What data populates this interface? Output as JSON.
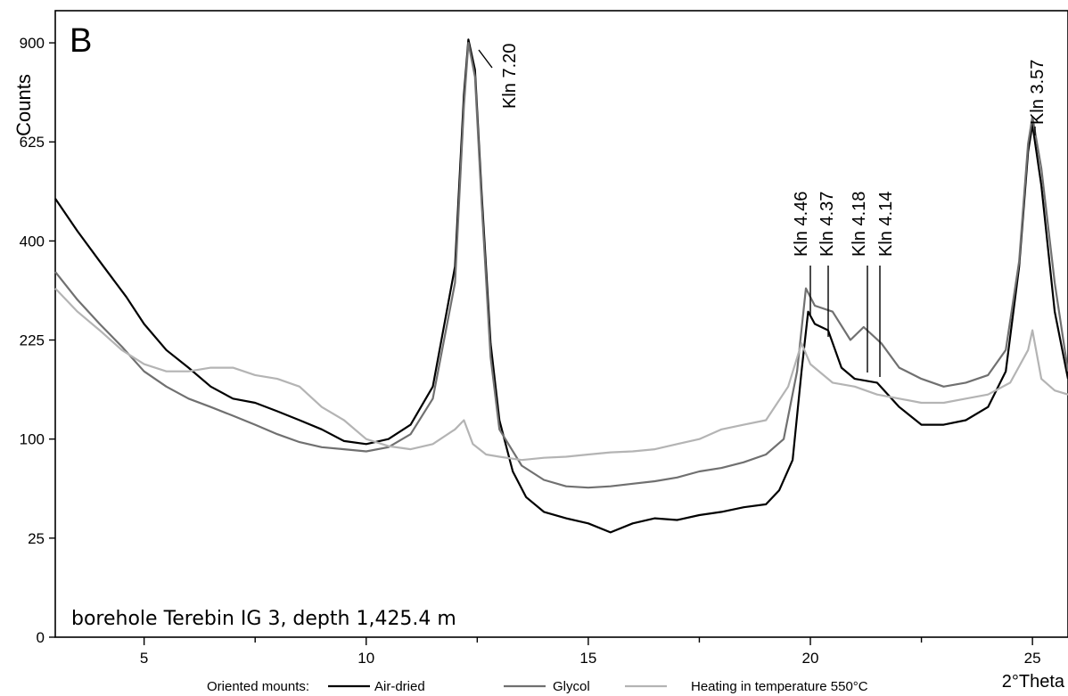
{
  "chart_data": {
    "type": "line",
    "panel_label": "B",
    "ylabel": "Counts",
    "xlabel": "2°Theta",
    "annotation": "borehole Terebin IG 3, depth 1,425.4 m",
    "xlim": [
      3.0,
      25.8
    ],
    "ylim": [
      0,
      1000
    ],
    "y_scale": "sqrt",
    "x_ticks": [
      5,
      10,
      15,
      20,
      25
    ],
    "x_tick_labels": [
      "5",
      "10",
      "15",
      "20",
      "25"
    ],
    "y_ticks": [
      0,
      25,
      100,
      225,
      400,
      625,
      900
    ],
    "y_tick_labels": [
      "0",
      "25",
      "100",
      "225",
      "400",
      "625",
      "900"
    ],
    "grid": false,
    "legend": {
      "title": "Oriented mounts:",
      "placement": "bottom"
    },
    "series": [
      {
        "name": "Air-dried",
        "color": "#000000",
        "points": [
          [
            3.0,
            490
          ],
          [
            3.5,
            420
          ],
          [
            4.0,
            360
          ],
          [
            4.6,
            295
          ],
          [
            5.0,
            250
          ],
          [
            5.5,
            210
          ],
          [
            6.0,
            185
          ],
          [
            6.5,
            160
          ],
          [
            7.0,
            145
          ],
          [
            7.5,
            140
          ],
          [
            8.0,
            130
          ],
          [
            8.5,
            120
          ],
          [
            9.0,
            110
          ],
          [
            9.5,
            98
          ],
          [
            10.0,
            95
          ],
          [
            10.5,
            100
          ],
          [
            11.0,
            115
          ],
          [
            11.5,
            160
          ],
          [
            12.0,
            350
          ],
          [
            12.2,
            750
          ],
          [
            12.3,
            910
          ],
          [
            12.45,
            820
          ],
          [
            12.6,
            500
          ],
          [
            12.8,
            220
          ],
          [
            13.0,
            120
          ],
          [
            13.3,
            70
          ],
          [
            13.6,
            50
          ],
          [
            14.0,
            40
          ],
          [
            14.5,
            36
          ],
          [
            15.0,
            33
          ],
          [
            15.5,
            28
          ],
          [
            16.0,
            33
          ],
          [
            16.5,
            36
          ],
          [
            17.0,
            35
          ],
          [
            17.5,
            38
          ],
          [
            18.0,
            40
          ],
          [
            18.5,
            43
          ],
          [
            19.0,
            45
          ],
          [
            19.3,
            55
          ],
          [
            19.6,
            80
          ],
          [
            19.8,
            180
          ],
          [
            19.95,
            270
          ],
          [
            20.1,
            250
          ],
          [
            20.4,
            240
          ],
          [
            20.7,
            185
          ],
          [
            21.0,
            170
          ],
          [
            21.5,
            165
          ],
          [
            22.0,
            135
          ],
          [
            22.5,
            115
          ],
          [
            23.0,
            115
          ],
          [
            23.5,
            120
          ],
          [
            24.0,
            135
          ],
          [
            24.4,
            180
          ],
          [
            24.7,
            350
          ],
          [
            24.9,
            600
          ],
          [
            25.0,
            670
          ],
          [
            25.2,
            520
          ],
          [
            25.5,
            270
          ],
          [
            25.8,
            170
          ]
        ]
      },
      {
        "name": "Glycol",
        "color": "#707070",
        "points": [
          [
            3.0,
            340
          ],
          [
            3.5,
            290
          ],
          [
            4.0,
            250
          ],
          [
            4.5,
            215
          ],
          [
            5.0,
            180
          ],
          [
            5.5,
            160
          ],
          [
            6.0,
            145
          ],
          [
            6.5,
            135
          ],
          [
            7.0,
            125
          ],
          [
            7.5,
            115
          ],
          [
            8.0,
            105
          ],
          [
            8.5,
            97
          ],
          [
            9.0,
            92
          ],
          [
            9.5,
            90
          ],
          [
            10.0,
            88
          ],
          [
            10.5,
            92
          ],
          [
            11.0,
            105
          ],
          [
            11.5,
            145
          ],
          [
            12.0,
            320
          ],
          [
            12.2,
            720
          ],
          [
            12.3,
            900
          ],
          [
            12.45,
            800
          ],
          [
            12.6,
            480
          ],
          [
            12.8,
            200
          ],
          [
            13.0,
            110
          ],
          [
            13.5,
            75
          ],
          [
            14.0,
            63
          ],
          [
            14.5,
            58
          ],
          [
            15.0,
            57
          ],
          [
            15.5,
            58
          ],
          [
            16.0,
            60
          ],
          [
            16.5,
            62
          ],
          [
            17.0,
            65
          ],
          [
            17.5,
            70
          ],
          [
            18.0,
            73
          ],
          [
            18.5,
            78
          ],
          [
            19.0,
            85
          ],
          [
            19.4,
            100
          ],
          [
            19.7,
            180
          ],
          [
            19.9,
            310
          ],
          [
            20.1,
            280
          ],
          [
            20.5,
            270
          ],
          [
            20.9,
            225
          ],
          [
            21.2,
            245
          ],
          [
            21.6,
            220
          ],
          [
            22.0,
            185
          ],
          [
            22.5,
            170
          ],
          [
            23.0,
            160
          ],
          [
            23.5,
            165
          ],
          [
            24.0,
            175
          ],
          [
            24.4,
            210
          ],
          [
            24.7,
            360
          ],
          [
            24.9,
            620
          ],
          [
            25.0,
            690
          ],
          [
            25.2,
            560
          ],
          [
            25.5,
            320
          ],
          [
            25.8,
            180
          ]
        ]
      },
      {
        "name": "Heating in temperature 550°C",
        "color": "#b4b4b4",
        "points": [
          [
            3.0,
            310
          ],
          [
            3.5,
            270
          ],
          [
            4.0,
            240
          ],
          [
            4.5,
            210
          ],
          [
            5.0,
            190
          ],
          [
            5.5,
            180
          ],
          [
            6.0,
            180
          ],
          [
            6.5,
            185
          ],
          [
            7.0,
            185
          ],
          [
            7.5,
            175
          ],
          [
            8.0,
            170
          ],
          [
            8.5,
            160
          ],
          [
            9.0,
            135
          ],
          [
            9.5,
            120
          ],
          [
            10.0,
            100
          ],
          [
            10.5,
            93
          ],
          [
            11.0,
            90
          ],
          [
            11.5,
            95
          ],
          [
            12.0,
            110
          ],
          [
            12.2,
            120
          ],
          [
            12.4,
            95
          ],
          [
            12.7,
            85
          ],
          [
            13.0,
            83
          ],
          [
            13.5,
            80
          ],
          [
            14.0,
            82
          ],
          [
            14.5,
            83
          ],
          [
            15.0,
            85
          ],
          [
            15.5,
            87
          ],
          [
            16.0,
            88
          ],
          [
            16.5,
            90
          ],
          [
            17.0,
            95
          ],
          [
            17.5,
            100
          ],
          [
            18.0,
            110
          ],
          [
            18.5,
            115
          ],
          [
            19.0,
            120
          ],
          [
            19.5,
            160
          ],
          [
            19.8,
            220
          ],
          [
            20.0,
            190
          ],
          [
            20.5,
            165
          ],
          [
            21.0,
            160
          ],
          [
            21.5,
            150
          ],
          [
            22.0,
            145
          ],
          [
            22.5,
            140
          ],
          [
            23.0,
            140
          ],
          [
            23.5,
            145
          ],
          [
            24.0,
            150
          ],
          [
            24.5,
            165
          ],
          [
            24.9,
            210
          ],
          [
            25.0,
            240
          ],
          [
            25.2,
            170
          ],
          [
            25.5,
            155
          ],
          [
            25.8,
            150
          ]
        ]
      }
    ],
    "annotations": [
      {
        "label": "Kln 7.20",
        "x": 12.3,
        "y": 910
      },
      {
        "label": "Kln 4.46",
        "x": 19.95,
        "y": 290
      },
      {
        "label": "Kln 4.37",
        "x": 20.4,
        "y": 260
      },
      {
        "label": "Kln 4.18",
        "x": 21.2,
        "y": 175
      },
      {
        "label": "Kln 4.14",
        "x": 21.5,
        "y": 170
      },
      {
        "label": "Kln 3.57",
        "x": 25.0,
        "y": 690
      }
    ]
  }
}
